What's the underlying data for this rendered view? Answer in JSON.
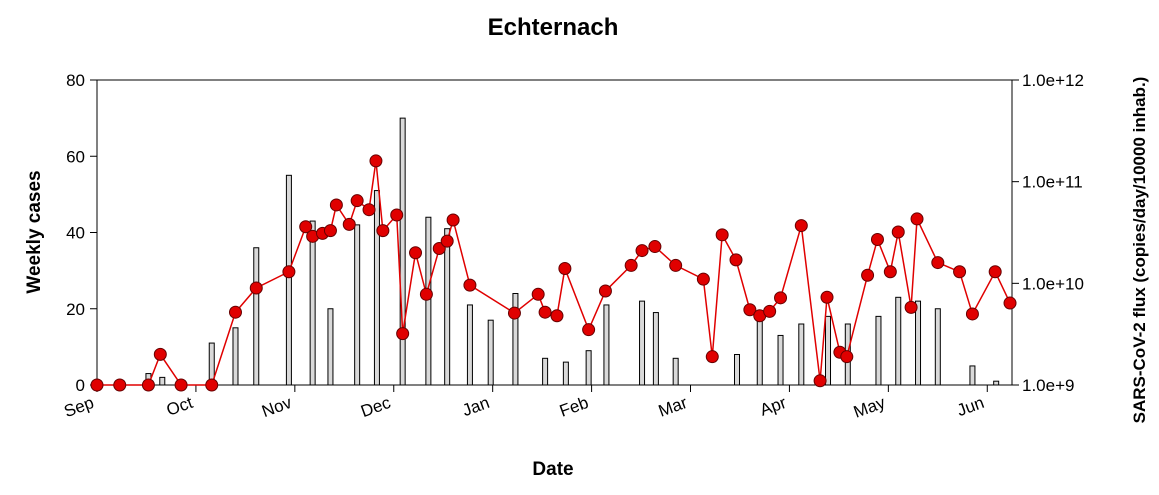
{
  "chart_data": {
    "type": "bar-line",
    "title": "Echternach",
    "x_label": "Date",
    "y_label": "Weekly cases",
    "y2_label": "SARS-CoV-2 flux (copies/day/10000 inhab.)",
    "xlim": [
      0,
      9.25
    ],
    "xticks": [
      {
        "value": 0,
        "label": "Sep"
      },
      {
        "value": 1,
        "label": "Oct"
      },
      {
        "value": 2,
        "label": "Nov"
      },
      {
        "value": 3,
        "label": "Dec"
      },
      {
        "value": 4,
        "label": "Jan"
      },
      {
        "value": 5,
        "label": "Feb"
      },
      {
        "value": 6,
        "label": "Mar"
      },
      {
        "value": 7,
        "label": "Apr"
      },
      {
        "value": 8,
        "label": "May"
      },
      {
        "value": 9,
        "label": "Jun"
      }
    ],
    "ylim": [
      0,
      80
    ],
    "yticks": [
      0,
      20,
      40,
      60,
      80
    ],
    "y2lim": [
      1000000000,
      1000000000000
    ],
    "y2_log": true,
    "y2ticks": [
      {
        "value": 1000000000,
        "label": "1.0e+9"
      },
      {
        "value": 10000000000,
        "label": "1.0e+10"
      },
      {
        "value": 100000000000,
        "label": "1.0e+11"
      },
      {
        "value": 1000000000000,
        "label": "1.0e+12"
      }
    ],
    "series": [
      {
        "kind": "bar",
        "color": "#d9d9d9",
        "x": [
          0.52,
          0.66,
          1.16,
          1.4,
          1.61,
          1.94,
          2.18,
          2.36,
          2.63,
          2.83,
          3.09,
          3.35,
          3.54,
          3.77,
          3.98,
          4.23,
          4.53,
          4.74,
          4.97,
          5.15,
          5.51,
          5.65,
          5.85,
          6.47,
          6.7,
          6.91,
          7.12,
          7.39,
          7.59,
          7.9,
          8.1,
          8.3,
          8.5,
          8.85,
          9.09
        ],
        "values": [
          3,
          2,
          11,
          15,
          36,
          55,
          43,
          20,
          42,
          51,
          70,
          44,
          41,
          21,
          17,
          24,
          7,
          6,
          9,
          21,
          22,
          19,
          7,
          8,
          19,
          13,
          16,
          18,
          16,
          18,
          23,
          22,
          20,
          5,
          1
        ]
      },
      {
        "kind": "line",
        "axis": "y2",
        "color": "#e00000",
        "x": [
          0,
          0.23,
          0.52,
          0.64,
          0.85,
          1.16,
          1.4,
          1.61,
          1.94,
          2.11,
          2.18,
          2.28,
          2.36,
          2.42,
          2.55,
          2.63,
          2.75,
          2.82,
          2.89,
          3.03,
          3.09,
          3.22,
          3.33,
          3.46,
          3.54,
          3.6,
          3.77,
          4.22,
          4.46,
          4.53,
          4.65,
          4.73,
          4.97,
          5.14,
          5.4,
          5.51,
          5.64,
          5.85,
          6.13,
          6.22,
          6.32,
          6.46,
          6.6,
          6.7,
          6.8,
          6.91,
          7.12,
          7.31,
          7.38,
          7.51,
          7.58,
          7.79,
          7.89,
          8.02,
          8.1,
          8.23,
          8.29,
          8.5,
          8.72,
          8.85,
          9.08,
          9.23
        ],
        "values": [
          1000000000,
          1000000000,
          1000000000,
          2000000000,
          1000000000,
          1000000000,
          5200000000,
          9000000000,
          13000000000,
          36000000000,
          29000000000,
          31000000000,
          33000000000,
          59000000000,
          38000000000,
          65000000000,
          53000000000,
          160000000000,
          33000000000,
          47000000000,
          3200000000,
          20000000000,
          7800000000,
          22000000000,
          26000000000,
          42000000000,
          9600000000,
          5100000000,
          7800000000,
          5200000000,
          4800000000,
          14000000000,
          3500000000,
          8400000000,
          15000000000,
          21000000000,
          23000000000,
          15000000000,
          11000000000,
          1900000000,
          30000000000,
          17000000000,
          5500000000,
          4800000000,
          5300000000,
          7200000000,
          37000000000,
          1100000000,
          7300000000,
          2100000000,
          1900000000,
          12000000000,
          27000000000,
          13000000000,
          32000000000,
          5800000000,
          43000000000,
          16000000000,
          13000000000,
          5000000000,
          13000000000,
          6400000000
        ]
      }
    ]
  }
}
